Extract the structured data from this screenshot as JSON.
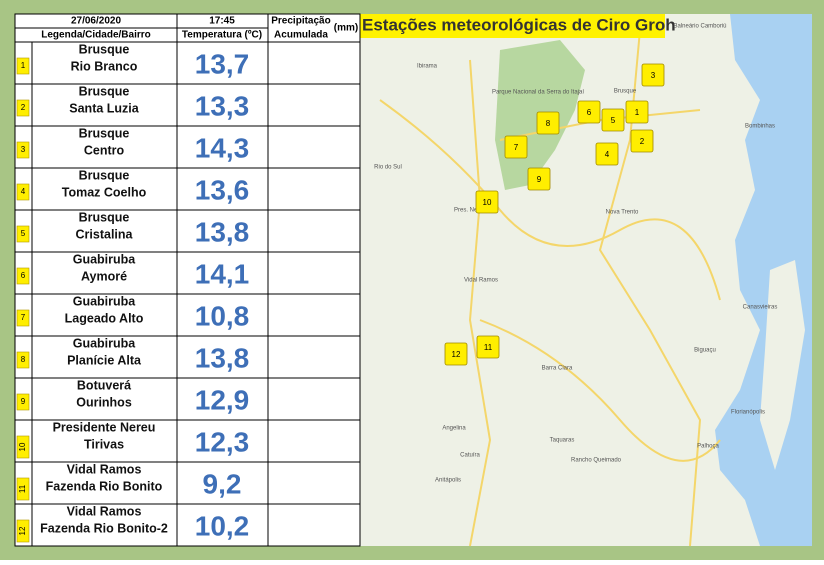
{
  "header": {
    "date": "27/06/2020",
    "time": "17:45",
    "precip_line1": "Precipitação",
    "precip_unit": "(mm)",
    "precip_line2": "Acumulada",
    "legend_label": "Legenda/Cidade/Bairro",
    "temp_label": "Temperatura (ºC)"
  },
  "table": {
    "rows": [
      [
        "1",
        "Brusque",
        "Rio Branco",
        "13,7"
      ],
      [
        "2",
        "Brusque",
        "Santa Luzia",
        "13,3"
      ],
      [
        "3",
        "Brusque",
        "Centro",
        "14,3"
      ],
      [
        "4",
        "Brusque",
        "Tomaz Coelho",
        "13,6"
      ],
      [
        "5",
        "Brusque",
        "Cristalina",
        "13,8"
      ],
      [
        "6",
        "Guabiruba",
        "Aymoré",
        "14,1"
      ],
      [
        "7",
        "Guabiruba",
        "Lageado Alto",
        "10,8"
      ],
      [
        "8",
        "Guabiruba",
        "Planície Alta",
        "13,8"
      ],
      [
        "9",
        "Botuverá",
        "Ourinhos",
        "12,9"
      ],
      [
        "10",
        "Presidente Nereu",
        "Tirivas",
        "12,3"
      ],
      [
        "11",
        "Vidal Ramos",
        "Fazenda Rio Bonito",
        "9,2"
      ],
      [
        "12",
        "Vidal Ramos",
        "Fazenda Rio Bonito-2",
        "10,2"
      ]
    ]
  },
  "map": {
    "title": "Estações meteorológicas de Ciro Groh",
    "markers": [
      "1",
      "2",
      "3",
      "4",
      "5",
      "6",
      "7",
      "8",
      "9",
      "10",
      "11",
      "12"
    ],
    "places": [
      "Ibirama",
      "Brusque",
      "Balneário Camboriú",
      "Bombinhas",
      "Rio do Sul",
      "Pres. Nereu",
      "Nova Trento",
      "Vidal Ramos",
      "Barra Clara",
      "Biguaçu",
      "Florianópolis",
      "Palhoça",
      "Angelina",
      "Taquaras",
      "Rancho Queimado",
      "Anitápolis",
      "Catuíra",
      "Canasvieiras",
      "Parque Nacional da Serra do Itajaí"
    ]
  }
}
